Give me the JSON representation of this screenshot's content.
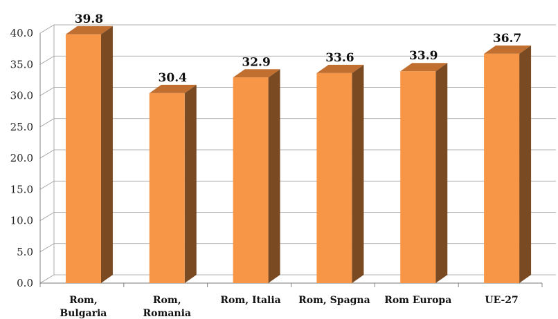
{
  "chart_data": {
    "type": "bar",
    "style": "3d-column",
    "categories": [
      "Rom, Bulgaria",
      "Rom, Romania",
      "Rom, Italia",
      "Rom, Spagna",
      "Rom Europa",
      "UE-27"
    ],
    "category_lines": [
      [
        "Rom,",
        "Bulgaria"
      ],
      [
        "Rom,",
        "Romania"
      ],
      [
        "Rom, Italia"
      ],
      [
        "Rom, Spagna"
      ],
      [
        "Rom Europa"
      ],
      [
        "UE-27"
      ]
    ],
    "values": [
      39.8,
      30.4,
      32.9,
      33.6,
      33.9,
      36.7
    ],
    "value_labels": [
      "39.8",
      "30.4",
      "32.9",
      "33.6",
      "33.9",
      "36.7"
    ],
    "ylim": [
      0,
      40
    ],
    "yticks": [
      "0.0",
      "5.0",
      "10.0",
      "15.0",
      "20.0",
      "25.0",
      "30.0",
      "35.0",
      "40.0"
    ],
    "grid": true,
    "legend": "none",
    "colors": {
      "front": "#F79646",
      "side": "#7A4A22",
      "top": "#C06F30"
    }
  }
}
